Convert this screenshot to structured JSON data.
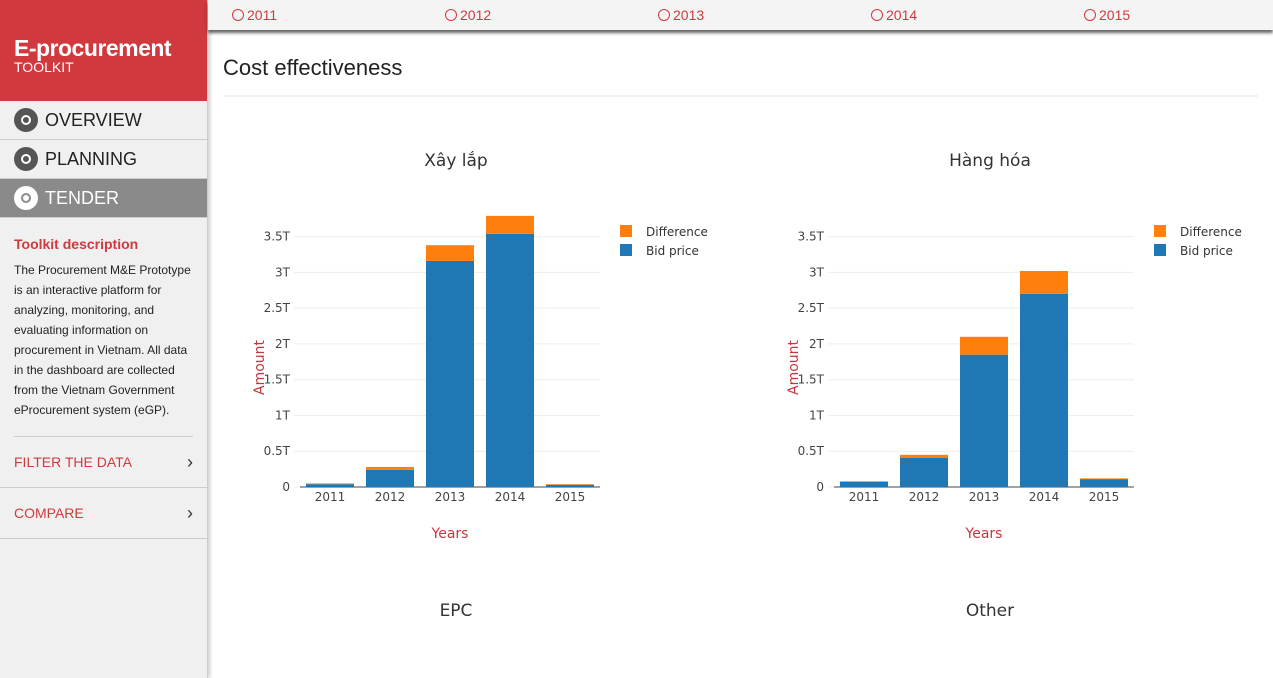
{
  "sidebar": {
    "brand": "E-procurement",
    "brand_sub": "TOOLKIT",
    "nav": [
      "OVERVIEW",
      "PLANNING",
      "TENDER"
    ],
    "description_title": "Toolkit description",
    "description": "The Procurement M&E Prototype is an interactive platform for analyzing, monitoring, and evaluating information on procurement in Vietnam. All data in the dashboard are collected from the Vietnam Government eProcurement system (eGP).",
    "links": [
      "FILTER THE DATA",
      "COMPARE"
    ]
  },
  "year_tabs": [
    "2011",
    "2012",
    "2013",
    "2014",
    "2015"
  ],
  "section_title": "Cost effectiveness",
  "chart_data": [
    {
      "type": "bar",
      "stacked": true,
      "title": "Xây lắp",
      "x_label": "Years",
      "y_label": "Amount",
      "categories": [
        "2011",
        "2012",
        "2013",
        "2014",
        "2015"
      ],
      "series": [
        {
          "name": "Difference",
          "color": "#ff7f0e",
          "values": [
            0.01,
            0.04,
            0.22,
            0.25,
            0.01
          ]
        },
        {
          "name": "Bid price",
          "color": "#1f77b4",
          "values": [
            0.04,
            0.24,
            3.16,
            3.54,
            0.03
          ]
        }
      ],
      "ylim": [
        0,
        3.9
      ],
      "yticks": [
        0,
        {
          "value": 0.5,
          "label": "0.5T"
        },
        {
          "value": 1,
          "label": "1T"
        },
        {
          "value": 1.5,
          "label": "1.5T"
        },
        {
          "value": 2,
          "label": "2T"
        },
        {
          "value": 2.5,
          "label": "2.5T"
        },
        {
          "value": 3,
          "label": "3T"
        },
        {
          "value": 3.5,
          "label": "3.5T"
        }
      ],
      "grid": true
    },
    {
      "type": "bar",
      "stacked": true,
      "title": "Hàng hóa",
      "x_label": "Years",
      "y_label": "Amount",
      "categories": [
        "2011",
        "2012",
        "2013",
        "2014",
        "2015"
      ],
      "series": [
        {
          "name": "Difference",
          "color": "#ff7f0e",
          "values": [
            0.01,
            0.04,
            0.25,
            0.32,
            0.01
          ]
        },
        {
          "name": "Bid price",
          "color": "#1f77b4",
          "values": [
            0.07,
            0.41,
            1.85,
            2.7,
            0.11
          ]
        }
      ],
      "ylim": [
        0,
        3.9
      ],
      "yticks": [
        0,
        {
          "value": 0.5,
          "label": "0.5T"
        },
        {
          "value": 1,
          "label": "1T"
        },
        {
          "value": 1.5,
          "label": "1.5T"
        },
        {
          "value": 2,
          "label": "2T"
        },
        {
          "value": 2.5,
          "label": "2.5T"
        },
        {
          "value": 3,
          "label": "3T"
        },
        {
          "value": 3.5,
          "label": "3.5T"
        }
      ],
      "grid": true
    },
    {
      "type": "bar",
      "title": "EPC"
    },
    {
      "type": "bar",
      "title": "Other"
    }
  ]
}
